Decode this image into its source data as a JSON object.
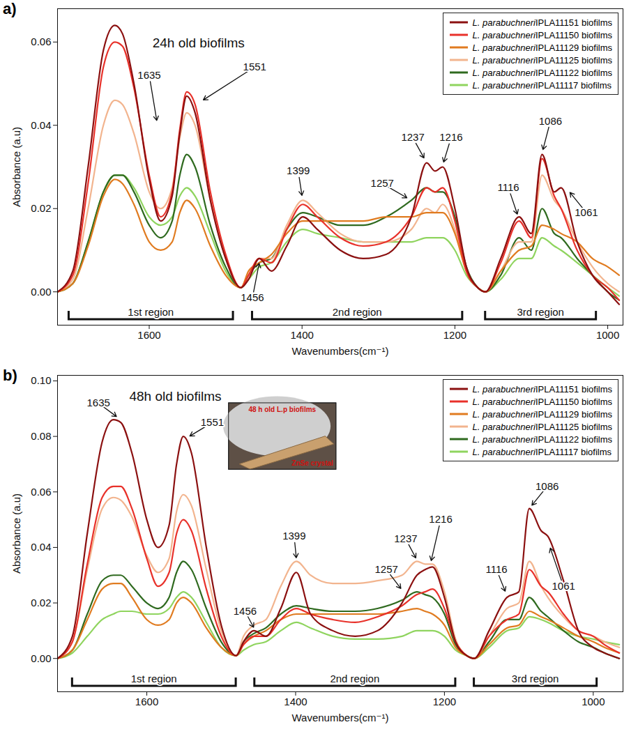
{
  "chart_data": [
    {
      "type": "line",
      "panel": "a)",
      "title": "24h old biofilms",
      "x_label": "Wavenumbers(cm⁻¹)",
      "y_label": "Absorbance (a.u)",
      "xlim": [
        1720,
        980
      ],
      "xticks": [
        1600,
        1400,
        1200,
        1000
      ],
      "ylim": [
        -0.008,
        0.068
      ],
      "yticks": [
        {
          "value": 0,
          "label": "0.00"
        },
        0.02,
        0.04,
        0.06
      ],
      "legend": "top-right",
      "x": [
        1720,
        1700,
        1680,
        1660,
        1645,
        1635,
        1620,
        1600,
        1585,
        1570,
        1560,
        1551,
        1540,
        1520,
        1500,
        1480,
        1470,
        1456,
        1440,
        1420,
        1399,
        1380,
        1350,
        1320,
        1290,
        1257,
        1237,
        1226,
        1216,
        1200,
        1185,
        1170,
        1160,
        1140,
        1116,
        1100,
        1086,
        1070,
        1061,
        1040,
        1020,
        1000,
        985
      ],
      "series": [
        {
          "name": "L. parabuchneri IPLA11151 biofilms",
          "color": "#8b1010",
          "values": [
            0.0,
            0.005,
            0.03,
            0.058,
            0.064,
            0.062,
            0.05,
            0.027,
            0.017,
            0.023,
            0.038,
            0.047,
            0.043,
            0.022,
            0.008,
            0.001,
            0.003,
            0.008,
            0.005,
            0.011,
            0.018,
            0.015,
            0.01,
            0.008,
            0.009,
            0.018,
            0.031,
            0.029,
            0.03,
            0.02,
            0.006,
            0.001,
            0.0,
            0.008,
            0.018,
            0.014,
            0.033,
            0.024,
            0.025,
            0.012,
            0.004,
            0.0,
            -0.003
          ]
        },
        {
          "name": "L. parabuchneri IPLA11150 biofilms",
          "color": "#e8312a",
          "values": [
            0.0,
            0.004,
            0.026,
            0.054,
            0.06,
            0.059,
            0.049,
            0.028,
            0.018,
            0.024,
            0.039,
            0.048,
            0.045,
            0.024,
            0.009,
            0.001,
            0.004,
            0.008,
            0.007,
            0.015,
            0.021,
            0.018,
            0.013,
            0.011,
            0.012,
            0.018,
            0.025,
            0.024,
            0.025,
            0.017,
            0.005,
            0.001,
            0.0,
            0.007,
            0.017,
            0.013,
            0.032,
            0.023,
            0.02,
            0.01,
            0.004,
            0.001,
            -0.002
          ]
        },
        {
          "name": "L. parabuchneri IPLA11129 biofilms",
          "color": "#e07b20",
          "values": [
            0.0,
            0.002,
            0.011,
            0.023,
            0.027,
            0.026,
            0.021,
            0.012,
            0.01,
            0.012,
            0.019,
            0.022,
            0.02,
            0.011,
            0.004,
            0.001,
            0.005,
            0.007,
            0.009,
            0.014,
            0.017,
            0.017,
            0.017,
            0.017,
            0.018,
            0.018,
            0.019,
            0.019,
            0.019,
            0.014,
            0.005,
            0.001,
            0.0,
            0.005,
            0.01,
            0.011,
            0.016,
            0.015,
            0.014,
            0.012,
            0.008,
            0.006,
            0.004
          ]
        },
        {
          "name": "L. parabuchneri IPLA11125 biofilms",
          "color": "#f2b48e",
          "values": [
            0.0,
            0.003,
            0.02,
            0.04,
            0.046,
            0.045,
            0.038,
            0.024,
            0.02,
            0.025,
            0.037,
            0.043,
            0.04,
            0.022,
            0.008,
            0.001,
            0.004,
            0.008,
            0.008,
            0.016,
            0.022,
            0.019,
            0.014,
            0.012,
            0.012,
            0.015,
            0.02,
            0.019,
            0.021,
            0.015,
            0.005,
            0.001,
            0.0,
            0.005,
            0.012,
            0.012,
            0.028,
            0.022,
            0.02,
            0.012,
            0.006,
            0.002,
            0.0
          ]
        },
        {
          "name": "L. parabuchneri IPLA11122 biofilms",
          "color": "#2f6a1f",
          "values": [
            0.0,
            0.002,
            0.012,
            0.024,
            0.028,
            0.028,
            0.024,
            0.016,
            0.013,
            0.017,
            0.028,
            0.033,
            0.03,
            0.016,
            0.006,
            0.001,
            0.004,
            0.007,
            0.008,
            0.015,
            0.019,
            0.018,
            0.016,
            0.016,
            0.018,
            0.022,
            0.025,
            0.024,
            0.024,
            0.018,
            0.006,
            0.001,
            0.0,
            0.004,
            0.013,
            0.01,
            0.02,
            0.014,
            0.013,
            0.008,
            0.004,
            0.0,
            -0.002
          ]
        },
        {
          "name": "L. parabuchneri IPLA11117 biofilms",
          "color": "#8fd45e",
          "values": [
            0.0,
            0.002,
            0.012,
            0.024,
            0.028,
            0.028,
            0.025,
            0.018,
            0.016,
            0.018,
            0.023,
            0.025,
            0.023,
            0.014,
            0.005,
            0.001,
            0.003,
            0.006,
            0.007,
            0.012,
            0.015,
            0.014,
            0.013,
            0.012,
            0.012,
            0.012,
            0.013,
            0.013,
            0.013,
            0.01,
            0.004,
            0.001,
            0.0,
            0.003,
            0.008,
            0.008,
            0.013,
            0.011,
            0.01,
            0.007,
            0.004,
            0.001,
            -0.001
          ]
        }
      ],
      "annotations": [
        {
          "text": "1635",
          "x": 1600,
          "y": 0.052,
          "target": [
            1590,
            0.041
          ]
        },
        {
          "text": "1551",
          "x": 1462,
          "y": 0.054,
          "target": [
            1530,
            0.046
          ]
        },
        {
          "text": "1456",
          "x": 1465,
          "y": -0.0015,
          "target": [
            1456,
            0.007
          ]
        },
        {
          "text": "1399",
          "x": 1405,
          "y": 0.029,
          "target": [
            1400,
            0.023
          ]
        },
        {
          "text": "1257",
          "x": 1295,
          "y": 0.026,
          "target": [
            1262,
            0.0225
          ]
        },
        {
          "text": "1237",
          "x": 1255,
          "y": 0.037,
          "target": [
            1240,
            0.032
          ]
        },
        {
          "text": "1216",
          "x": 1205,
          "y": 0.037,
          "target": [
            1215,
            0.031
          ]
        },
        {
          "text": "1116",
          "x": 1130,
          "y": 0.025,
          "target": [
            1118,
            0.0185
          ]
        },
        {
          "text": "1086",
          "x": 1075,
          "y": 0.041,
          "target": [
            1085,
            0.034
          ]
        },
        {
          "text": "1061",
          "x": 1028,
          "y": 0.019,
          "target": [
            1050,
            0.024
          ]
        }
      ],
      "regions": [
        {
          "label": "1st region",
          "from": 1705,
          "to": 1490
        },
        {
          "label": "2nd region",
          "from": 1465,
          "to": 1190
        },
        {
          "label": "3rd region",
          "from": 1160,
          "to": 1015
        }
      ]
    },
    {
      "type": "line",
      "panel": "b)",
      "title": "48h old biofilms",
      "x_label": "Wavenumbers(cm⁻¹)",
      "y_label": "Absorbance (a.u)",
      "xlim": [
        1720,
        960
      ],
      "xticks": [
        1600,
        1400,
        1200,
        1000
      ],
      "ylim": [
        -0.012,
        0.102
      ],
      "yticks": [
        {
          "value": 0,
          "label": "0.00"
        },
        0.02,
        0.04,
        0.06,
        0.08,
        {
          "value": 0.1,
          "label": "0.10"
        }
      ],
      "legend": "top-right",
      "x": [
        1720,
        1700,
        1680,
        1660,
        1645,
        1635,
        1620,
        1600,
        1585,
        1570,
        1560,
        1551,
        1540,
        1520,
        1500,
        1480,
        1470,
        1456,
        1440,
        1420,
        1399,
        1380,
        1350,
        1320,
        1290,
        1257,
        1237,
        1226,
        1216,
        1200,
        1185,
        1170,
        1160,
        1140,
        1116,
        1100,
        1086,
        1070,
        1061,
        1040,
        1020,
        1000,
        985,
        965
      ],
      "series": [
        {
          "name": "L. parabuchneri IPLA11151 biofilms",
          "color": "#8b1010",
          "values": [
            0.0,
            0.008,
            0.045,
            0.078,
            0.086,
            0.085,
            0.074,
            0.05,
            0.04,
            0.048,
            0.07,
            0.08,
            0.074,
            0.04,
            0.012,
            0.001,
            0.006,
            0.01,
            0.008,
            0.018,
            0.031,
            0.016,
            0.01,
            0.008,
            0.01,
            0.02,
            0.03,
            0.032,
            0.033,
            0.022,
            0.006,
            0.001,
            0.0,
            0.01,
            0.022,
            0.024,
            0.054,
            0.046,
            0.044,
            0.028,
            0.01,
            0.004,
            0.002,
            0.0
          ]
        },
        {
          "name": "L. parabuchneri IPLA11150 biofilms",
          "color": "#e8312a",
          "values": [
            0.0,
            0.006,
            0.034,
            0.058,
            0.062,
            0.062,
            0.054,
            0.036,
            0.026,
            0.031,
            0.045,
            0.05,
            0.046,
            0.025,
            0.008,
            0.001,
            0.005,
            0.008,
            0.008,
            0.014,
            0.018,
            0.016,
            0.014,
            0.013,
            0.015,
            0.019,
            0.023,
            0.024,
            0.025,
            0.018,
            0.006,
            0.001,
            0.0,
            0.008,
            0.014,
            0.016,
            0.032,
            0.026,
            0.024,
            0.016,
            0.01,
            0.008,
            0.005,
            0.002
          ]
        },
        {
          "name": "L. parabuchneri IPLA11129 biofilms",
          "color": "#e07b20",
          "values": [
            0.0,
            0.003,
            0.014,
            0.025,
            0.027,
            0.027,
            0.022,
            0.014,
            0.012,
            0.014,
            0.02,
            0.022,
            0.02,
            0.011,
            0.004,
            0.001,
            0.005,
            0.008,
            0.01,
            0.014,
            0.016,
            0.016,
            0.016,
            0.016,
            0.016,
            0.017,
            0.018,
            0.017,
            0.016,
            0.012,
            0.004,
            0.001,
            0.0,
            0.005,
            0.011,
            0.012,
            0.017,
            0.015,
            0.014,
            0.011,
            0.008,
            0.006,
            0.004,
            0.002
          ]
        },
        {
          "name": "L. parabuchneri IPLA11125 biofilms",
          "color": "#f2b48e",
          "values": [
            0.0,
            0.006,
            0.032,
            0.054,
            0.058,
            0.057,
            0.051,
            0.037,
            0.031,
            0.036,
            0.053,
            0.059,
            0.055,
            0.032,
            0.01,
            0.001,
            0.008,
            0.012,
            0.014,
            0.026,
            0.035,
            0.03,
            0.027,
            0.027,
            0.028,
            0.03,
            0.035,
            0.034,
            0.034,
            0.024,
            0.007,
            0.001,
            0.0,
            0.008,
            0.018,
            0.02,
            0.035,
            0.026,
            0.022,
            0.015,
            0.01,
            0.008,
            0.006,
            0.004
          ]
        },
        {
          "name": "L. parabuchneri IPLA11122 biofilms",
          "color": "#2f6a1f",
          "values": [
            0.0,
            0.003,
            0.016,
            0.028,
            0.03,
            0.03,
            0.026,
            0.02,
            0.018,
            0.022,
            0.031,
            0.035,
            0.032,
            0.018,
            0.006,
            0.001,
            0.006,
            0.009,
            0.011,
            0.016,
            0.019,
            0.018,
            0.017,
            0.017,
            0.018,
            0.021,
            0.024,
            0.023,
            0.022,
            0.016,
            0.005,
            0.001,
            0.0,
            0.006,
            0.014,
            0.014,
            0.022,
            0.017,
            0.015,
            0.01,
            0.006,
            0.004,
            0.002,
            0.0
          ]
        },
        {
          "name": "L. parabuchneri IPLA11117 biofilms",
          "color": "#8fd45e",
          "values": [
            0.0,
            0.002,
            0.008,
            0.014,
            0.016,
            0.017,
            0.017,
            0.016,
            0.016,
            0.018,
            0.022,
            0.024,
            0.022,
            0.013,
            0.004,
            0.001,
            0.003,
            0.005,
            0.006,
            0.01,
            0.013,
            0.011,
            0.008,
            0.007,
            0.007,
            0.008,
            0.01,
            0.01,
            0.01,
            0.008,
            0.003,
            0.001,
            0.0,
            0.004,
            0.01,
            0.011,
            0.015,
            0.014,
            0.013,
            0.01,
            0.008,
            0.007,
            0.006,
            0.005
          ]
        }
      ],
      "annotations": [
        {
          "text": "1635",
          "x": 1665,
          "y": 0.092,
          "target": [
            1640,
            0.087
          ]
        },
        {
          "text": "1551",
          "x": 1512,
          "y": 0.085,
          "target": [
            1543,
            0.08
          ]
        },
        {
          "text": "1456",
          "x": 1468,
          "y": 0.017,
          "target": [
            1456,
            0.011
          ]
        },
        {
          "text": "1399",
          "x": 1402,
          "y": 0.044,
          "target": [
            1399,
            0.036
          ]
        },
        {
          "text": "1257",
          "x": 1278,
          "y": 0.032,
          "target": [
            1258,
            0.025
          ]
        },
        {
          "text": "1237",
          "x": 1252,
          "y": 0.043,
          "target": [
            1238,
            0.036
          ]
        },
        {
          "text": "1216",
          "x": 1205,
          "y": 0.05,
          "target": [
            1218,
            0.035
          ]
        },
        {
          "text": "1116",
          "x": 1130,
          "y": 0.032,
          "target": [
            1118,
            0.024
          ]
        },
        {
          "text": "1086",
          "x": 1062,
          "y": 0.062,
          "target": [
            1083,
            0.055
          ]
        },
        {
          "text": "1061",
          "x": 1040,
          "y": 0.026,
          "target": [
            1058,
            0.04
          ]
        }
      ],
      "regions": [
        {
          "label": "1st region",
          "from": 1700,
          "to": 1480
        },
        {
          "label": "2nd region",
          "from": 1455,
          "to": 1185
        },
        {
          "label": "3rd region",
          "from": 1160,
          "to": 995
        }
      ],
      "inset": {
        "texts": [
          "48 h old L.p biofilms",
          "ZnSe crystal"
        ]
      }
    }
  ]
}
